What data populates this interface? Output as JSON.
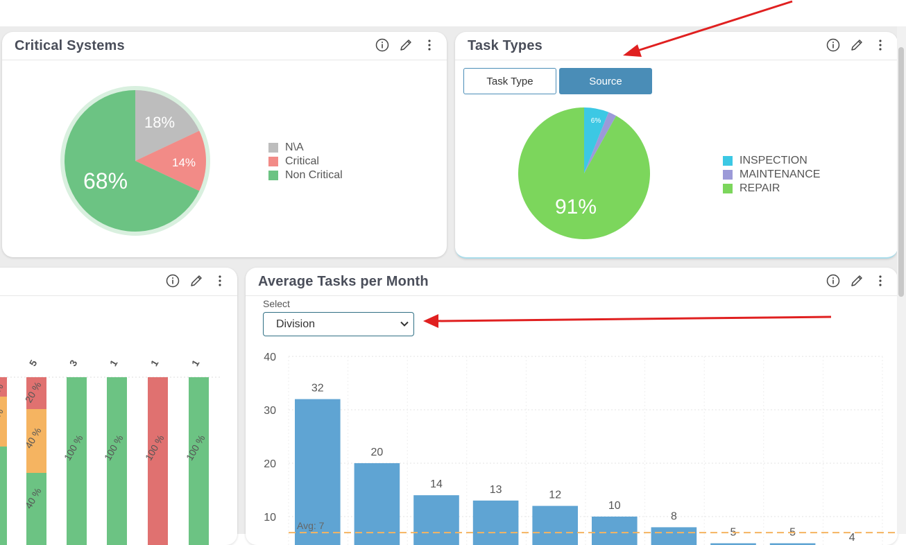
{
  "critical_systems": {
    "title": "Critical Systems",
    "legend": [
      {
        "label": "N\\A",
        "color": "#bdbdbd"
      },
      {
        "label": "Critical",
        "color": "#f28b87"
      },
      {
        "label": "Non Critical",
        "color": "#6cc383"
      }
    ],
    "slice_labels": [
      "18%",
      "14%",
      "68%"
    ]
  },
  "task_types": {
    "title": "Task Types",
    "buttons": [
      "Task Type",
      "Source"
    ],
    "active_button": "Source",
    "legend": [
      {
        "label": "INSPECTION",
        "color": "#3cc8e4"
      },
      {
        "label": "MAINTENANCE",
        "color": "#9c9ad8"
      },
      {
        "label": "REPAIR",
        "color": "#7cd65c"
      }
    ],
    "slice_labels": [
      "6%",
      "91%"
    ]
  },
  "stacked_panel": {
    "totals": [
      "5",
      "3",
      "1",
      "1",
      "1"
    ],
    "labels": {
      "col0": [
        "%",
        "%"
      ],
      "col1": [
        "20 %",
        "40 %",
        "40 %"
      ],
      "col2": [
        "100 %"
      ],
      "col3": [
        "100 %"
      ],
      "col4": [
        "100 %"
      ],
      "col5": [
        "100 %"
      ]
    }
  },
  "avg_tasks": {
    "title": "Average Tasks per Month",
    "select_label": "Select",
    "select_value": "Division",
    "avg_label": "Avg: 7"
  },
  "chart_data": [
    {
      "type": "pie",
      "title": "Critical Systems",
      "labels": [
        "N\\A",
        "Critical",
        "Non Critical"
      ],
      "values": [
        18,
        14,
        68
      ]
    },
    {
      "type": "pie",
      "title": "Task Types",
      "labels": [
        "INSPECTION",
        "MAINTENANCE",
        "REPAIR"
      ],
      "values": [
        6,
        2,
        91
      ]
    },
    {
      "type": "bar",
      "title": "Average Tasks per Month",
      "values": [
        32,
        20,
        14,
        13,
        12,
        10,
        8,
        5,
        5,
        4
      ],
      "ylim": [
        0,
        40
      ],
      "yticks": [
        10,
        20,
        30,
        40
      ],
      "average": 7,
      "grid": true
    }
  ],
  "colors": {
    "bar": "#5fa4d3",
    "active_button": "#4a8db7",
    "arrow": "#e02020",
    "stack_green": "#6cc383",
    "stack_orange": "#f5b461",
    "stack_red": "#e07170"
  }
}
